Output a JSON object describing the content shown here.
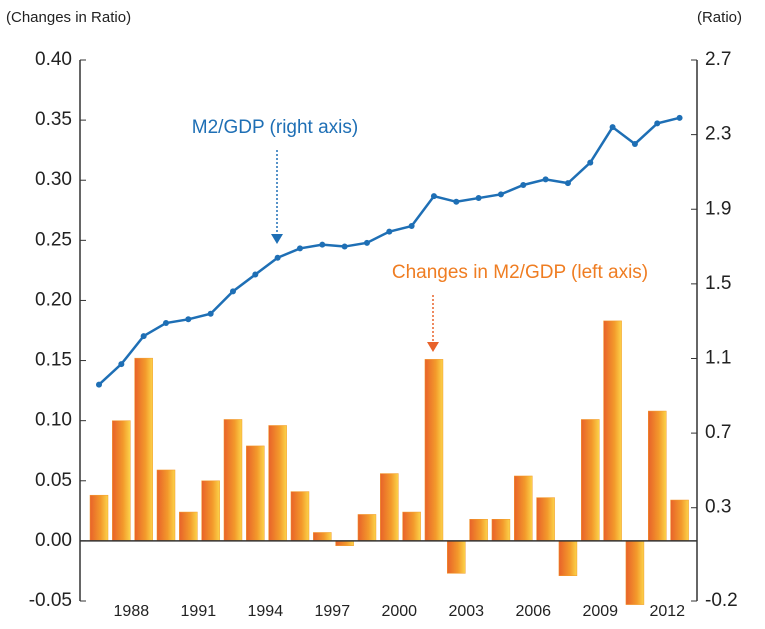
{
  "chart_data": {
    "type": "combo",
    "y_label": "(Changes in Ratio)",
    "y2_label": "(Ratio)",
    "annotations": [
      "M2/GDP (right axis)",
      "Changes in M2/GDP (left axis)"
    ],
    "categories": [
      null,
      "1988",
      null,
      null,
      "1991",
      null,
      null,
      "1994",
      null,
      null,
      "1997",
      null,
      null,
      "2000",
      null,
      null,
      "2003",
      null,
      null,
      "2006",
      null,
      null,
      "2009",
      null,
      null,
      "2012",
      null
    ],
    "series": [
      {
        "name": "Changes in M2/GDP",
        "type": "bar",
        "axis": "y",
        "color": "#f39a2b",
        "values": [
          0.038,
          0.1,
          0.152,
          0.059,
          0.024,
          0.05,
          0.101,
          0.079,
          0.096,
          0.041,
          0.007,
          -0.004,
          0.022,
          0.056,
          0.024,
          0.151,
          -0.027,
          0.018,
          0.018,
          0.054,
          0.036,
          -0.029,
          0.101,
          0.183,
          -0.053,
          0.108,
          0.034
        ]
      },
      {
        "name": "M2/GDP",
        "type": "line",
        "axis": "y2",
        "color": "#1e6fb5",
        "values": [
          0.96,
          1.07,
          1.22,
          1.29,
          1.31,
          1.34,
          1.46,
          1.55,
          1.64,
          1.69,
          1.71,
          1.7,
          1.72,
          1.78,
          1.81,
          1.97,
          1.94,
          1.96,
          1.98,
          2.03,
          2.06,
          2.04,
          2.15,
          2.34,
          2.25,
          2.36,
          2.39
        ]
      }
    ],
    "ylim": [
      -0.05,
      0.4
    ],
    "yticks": [
      {
        "value": 0.4,
        "label": "0.40"
      },
      0.35,
      {
        "value": 0.3,
        "label": "0.30"
      },
      0.25,
      {
        "value": 0.2,
        "label": "0.20"
      },
      0.15,
      {
        "value": 0.1,
        "label": "0.10"
      },
      0.05,
      {
        "value": 0,
        "label": "0.00"
      },
      -0.05
    ],
    "y2lim": [
      -0.2,
      2.7
    ],
    "y2ticks": [
      2.7,
      2.3,
      1.9,
      1.5,
      1.1,
      0.7,
      0.3,
      -0.2
    ]
  }
}
